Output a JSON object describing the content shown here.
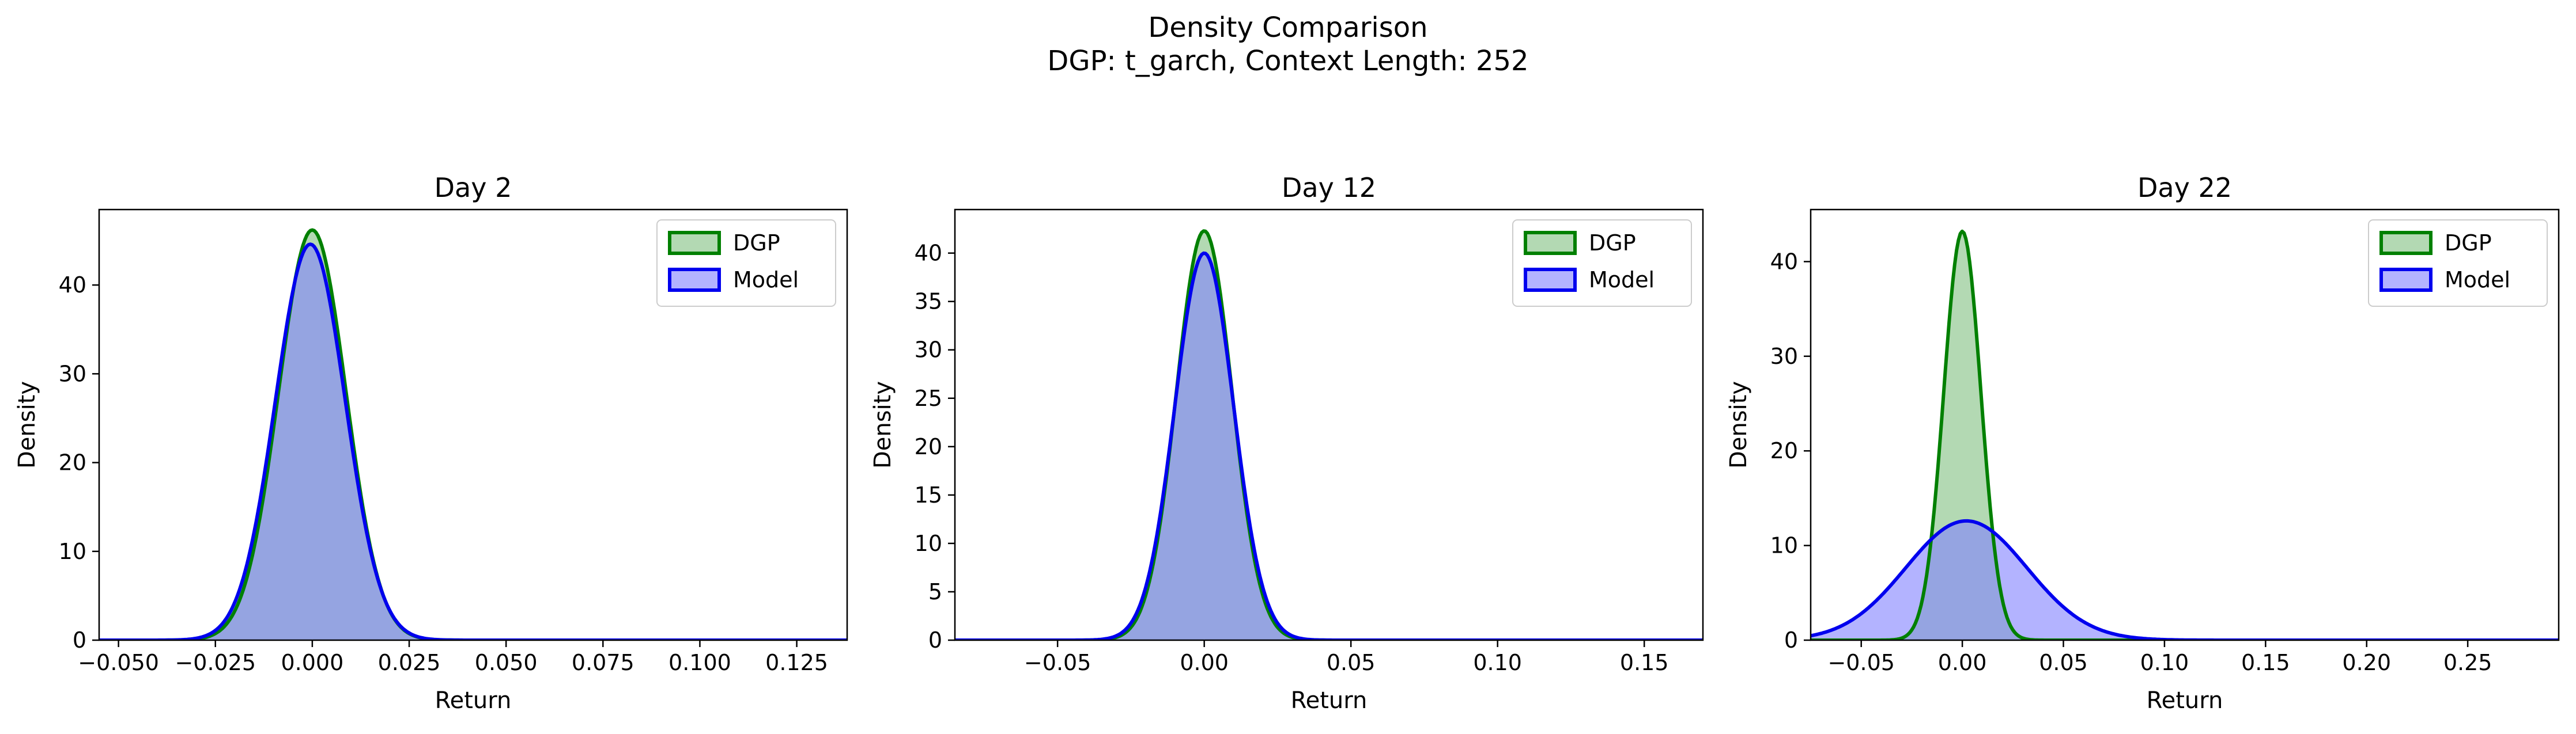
{
  "figure": {
    "title": "Density Comparison",
    "subtitle": "DGP: t_garch, Context Length: 252"
  },
  "colors": {
    "dgp_line": "#008000",
    "dgp_fill": "#80c080",
    "model_line": "#0000ee",
    "model_fill": "#8080ff",
    "overlap_fill": "#7f99c9"
  },
  "chart_data": [
    {
      "type": "area",
      "title": "Day 2",
      "xlabel": "Return",
      "ylabel": "Density",
      "xlim": [
        -0.055,
        0.138
      ],
      "ylim": [
        0,
        48.5
      ],
      "xticks": [
        -0.05,
        -0.025,
        0.0,
        0.025,
        0.05,
        0.075,
        0.1,
        0.125
      ],
      "xtick_labels": [
        "−0.050",
        "−0.025",
        "0.000",
        "0.025",
        "0.050",
        "0.075",
        "0.100",
        "0.125"
      ],
      "yticks": [
        0,
        10,
        20,
        30,
        40
      ],
      "ytick_labels": [
        "0",
        "10",
        "20",
        "30",
        "40"
      ],
      "legend": "top-right",
      "series": [
        {
          "name": "DGP",
          "mu": 0.0,
          "sigma": 0.0087,
          "peak": 46.2
        },
        {
          "name": "Model",
          "mu": -0.0005,
          "sigma": 0.009,
          "peak": 44.6
        }
      ]
    },
    {
      "type": "area",
      "title": "Day 12",
      "xlabel": "Return",
      "ylabel": "Density",
      "xlim": [
        -0.085,
        0.17
      ],
      "ylim": [
        0,
        44.5
      ],
      "xticks": [
        -0.05,
        0.0,
        0.05,
        0.1,
        0.15
      ],
      "xtick_labels": [
        "−0.05",
        "0.00",
        "0.05",
        "0.10",
        "0.15"
      ],
      "yticks": [
        0,
        5,
        10,
        15,
        20,
        25,
        30,
        35,
        40
      ],
      "ytick_labels": [
        "0",
        "5",
        "10",
        "15",
        "20",
        "25",
        "30",
        "35",
        "40"
      ],
      "legend": "top-right",
      "series": [
        {
          "name": "DGP",
          "mu": 0.0,
          "sigma": 0.0095,
          "peak": 42.3
        },
        {
          "name": "Model",
          "mu": 0.0,
          "sigma": 0.01,
          "peak": 40.0
        }
      ]
    },
    {
      "type": "area",
      "title": "Day 22",
      "xlabel": "Return",
      "ylabel": "Density",
      "xlim": [
        -0.075,
        0.295
      ],
      "ylim": [
        0,
        45.5
      ],
      "xticks": [
        -0.05,
        0.0,
        0.05,
        0.1,
        0.15,
        0.2,
        0.25
      ],
      "xtick_labels": [
        "−0.05",
        "0.00",
        "0.05",
        "0.10",
        "0.15",
        "0.20",
        "0.25"
      ],
      "yticks": [
        0,
        10,
        20,
        30,
        40
      ],
      "ytick_labels": [
        "0",
        "10",
        "20",
        "30",
        "40"
      ],
      "legend": "top-right",
      "series": [
        {
          "name": "DGP",
          "mu": 0.0,
          "sigma": 0.0092,
          "peak": 43.2
        },
        {
          "name": "Model",
          "mu": 0.002,
          "sigma": 0.03,
          "peak": 12.6
        }
      ]
    }
  ]
}
